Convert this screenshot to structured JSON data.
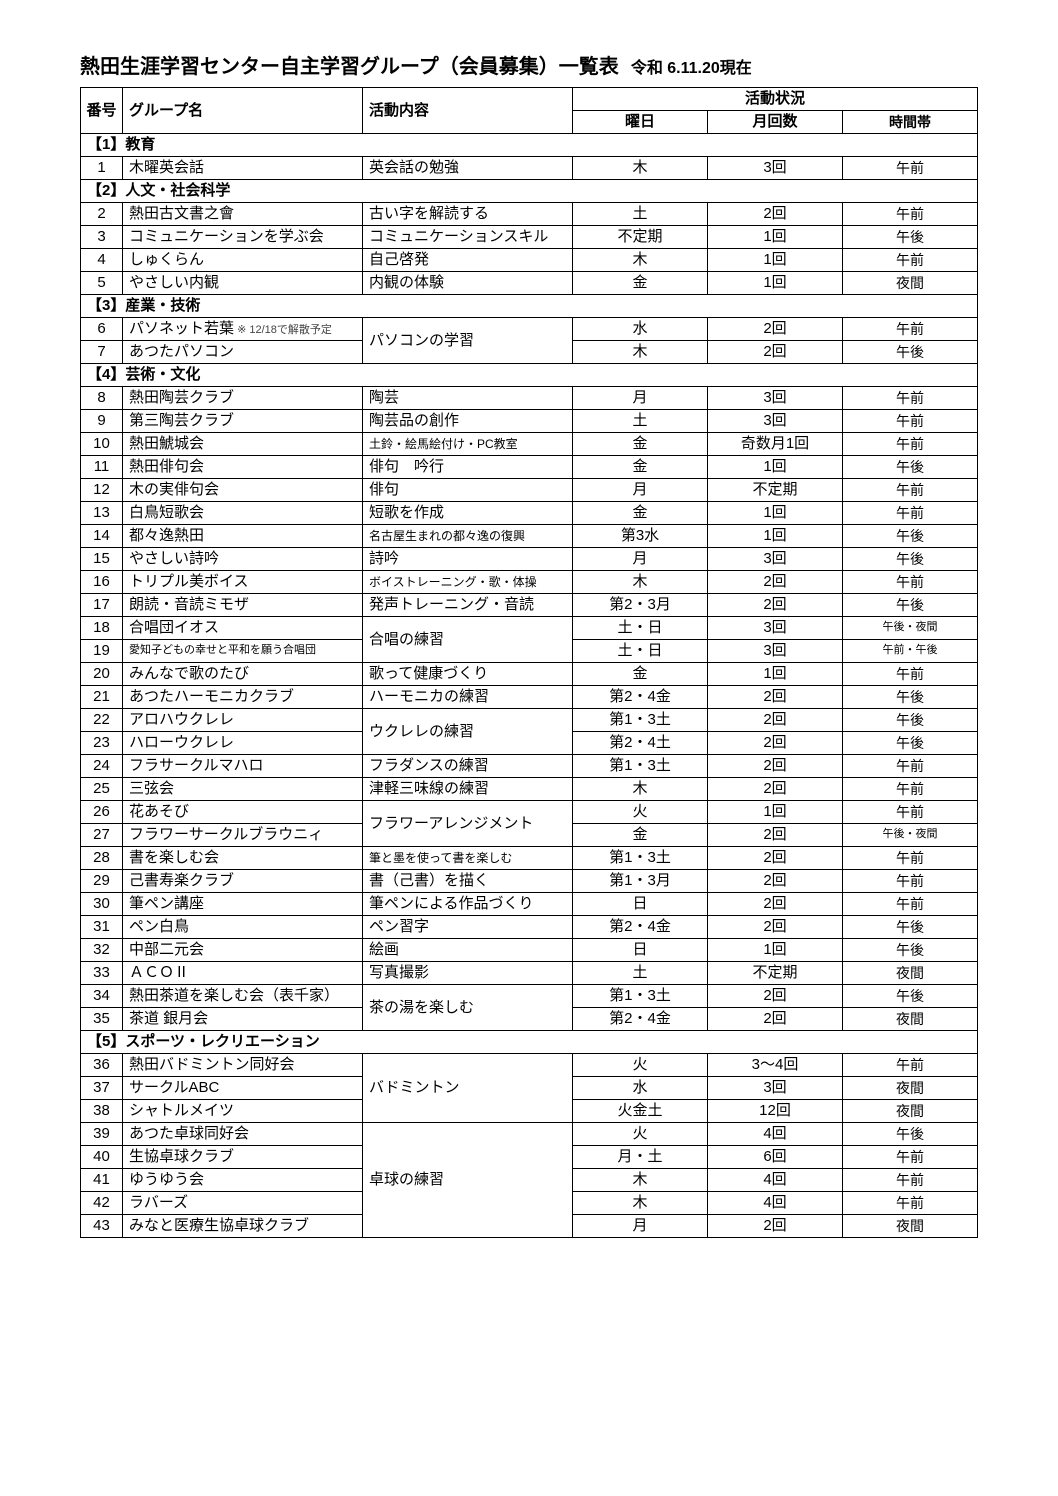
{
  "title": "熱田生涯学習センター自主学習グループ（会員募集）一覧表",
  "date": "令和 6.11.20現在",
  "headers": {
    "num": "番号",
    "name": "グループ名",
    "activity": "活動内容",
    "status": "活動状況",
    "day": "曜日",
    "count": "月回数",
    "time": "時間帯"
  },
  "sections": [
    {
      "label": "【1】教育",
      "rows": [
        {
          "num": "1",
          "name": "木曜英会話",
          "act": "英会話の勉強",
          "day": "木",
          "cnt": "3回",
          "time": "午前"
        }
      ]
    },
    {
      "label": "【2】人文・社会科学",
      "rows": [
        {
          "num": "2",
          "name": "熱田古文書之會",
          "act": "古い字を解読する",
          "day": "土",
          "cnt": "2回",
          "time": "午前"
        },
        {
          "num": "3",
          "name": "コミュニケーションを学ぶ会",
          "act": "コミュニケーションスキル",
          "day": "不定期",
          "cnt": "1回",
          "time": "午後"
        },
        {
          "num": "4",
          "name": "しゅくらん",
          "act": "自己啓発",
          "day": "木",
          "cnt": "1回",
          "time": "午前"
        },
        {
          "num": "5",
          "name": "やさしい内観",
          "act": "内観の体験",
          "day": "金",
          "cnt": "1回",
          "time": "夜間"
        }
      ]
    },
    {
      "label": "【3】産業・技術",
      "rows": [
        {
          "num": "6",
          "name": "パソネット若葉",
          "note": "※ 12/18で解散予定",
          "act": "パソコンの学習",
          "rowspan_act": 2,
          "day": "水",
          "cnt": "2回",
          "time": "午前"
        },
        {
          "num": "7",
          "name": "あつたパソコン",
          "day": "木",
          "cnt": "2回",
          "time": "午後"
        }
      ]
    },
    {
      "label": "【4】芸術・文化",
      "rows": [
        {
          "num": "8",
          "name": "熱田陶芸クラブ",
          "act": "陶芸",
          "day": "月",
          "cnt": "3回",
          "time": "午前"
        },
        {
          "num": "9",
          "name": "第三陶芸クラブ",
          "act": "陶芸品の創作",
          "day": "土",
          "cnt": "3回",
          "time": "午前"
        },
        {
          "num": "10",
          "name": "熱田鯱城会",
          "act": "土鈴・絵馬絵付け・PC教室",
          "act_small": true,
          "day": "金",
          "cnt": "奇数月1回",
          "time": "午前"
        },
        {
          "num": "11",
          "name": "熱田俳句会",
          "act": "俳句　吟行",
          "day": "金",
          "cnt": "1回",
          "time": "午後"
        },
        {
          "num": "12",
          "name": "木の実俳句会",
          "act": "俳句",
          "day": "月",
          "cnt": "不定期",
          "time": "午前"
        },
        {
          "num": "13",
          "name": "白鳥短歌会",
          "act": "短歌を作成",
          "day": "金",
          "cnt": "1回",
          "time": "午前"
        },
        {
          "num": "14",
          "name": "都々逸熱田",
          "act": "名古屋生まれの都々逸の復興",
          "act_small": true,
          "day": "第3水",
          "cnt": "1回",
          "time": "午後"
        },
        {
          "num": "15",
          "name": "やさしい詩吟",
          "act": "詩吟",
          "day": "月",
          "cnt": "3回",
          "time": "午後"
        },
        {
          "num": "16",
          "name": "トリプル美ボイス",
          "act": "ボイストレーニング・歌・体操",
          "act_small": true,
          "day": "木",
          "cnt": "2回",
          "time": "午前"
        },
        {
          "num": "17",
          "name": "朗読・音読ミモザ",
          "act": "発声トレーニング・音読",
          "day": "第2・3月",
          "cnt": "2回",
          "time": "午後"
        },
        {
          "num": "18",
          "name": "合唱団イオス",
          "act": "合唱の練習",
          "rowspan_act": 2,
          "day": "土・日",
          "cnt": "3回",
          "time": "午後・夜間",
          "time_small": true
        },
        {
          "num": "19",
          "name": "愛知子どもの幸せと平和を願う合唱団",
          "name_small": true,
          "day": "土・日",
          "cnt": "3回",
          "time": "午前・午後",
          "time_small": true
        },
        {
          "num": "20",
          "name": "みんなで歌のたび",
          "act": "歌って健康づくり",
          "day": "金",
          "cnt": "1回",
          "time": "午前"
        },
        {
          "num": "21",
          "name": "あつたハーモニカクラブ",
          "act": "ハーモニカの練習",
          "day": "第2・4金",
          "cnt": "2回",
          "time": "午後"
        },
        {
          "num": "22",
          "name": "アロハウクレレ",
          "act": "ウクレレの練習",
          "rowspan_act": 2,
          "day": "第1・3土",
          "cnt": "2回",
          "time": "午後"
        },
        {
          "num": "23",
          "name": "ハローウクレレ",
          "day": "第2・4土",
          "cnt": "2回",
          "time": "午後"
        },
        {
          "num": "24",
          "name": "フラサークルマハロ",
          "act": "フラダンスの練習",
          "day": "第1・3土",
          "cnt": "2回",
          "time": "午前"
        },
        {
          "num": "25",
          "name": "三弦会",
          "act": "津軽三味線の練習",
          "day": "木",
          "cnt": "2回",
          "time": "午前"
        },
        {
          "num": "26",
          "name": "花あそび",
          "act": "フラワーアレンジメント",
          "rowspan_act": 2,
          "day": "火",
          "cnt": "1回",
          "time": "午前"
        },
        {
          "num": "27",
          "name": "フラワーサークルブラウニィ",
          "day": "金",
          "cnt": "2回",
          "time": "午後・夜間",
          "time_small": true
        },
        {
          "num": "28",
          "name": "書を楽しむ会",
          "act": "筆と墨を使って書を楽しむ",
          "act_small": true,
          "day": "第1・3土",
          "cnt": "2回",
          "time": "午前"
        },
        {
          "num": "29",
          "name": "己書寿楽クラブ",
          "act": "書（己書）を描く",
          "day": "第1・3月",
          "cnt": "2回",
          "time": "午前"
        },
        {
          "num": "30",
          "name": "筆ペン講座",
          "act": "筆ペンによる作品づくり",
          "day": "日",
          "cnt": "2回",
          "time": "午前"
        },
        {
          "num": "31",
          "name": "ペン白鳥",
          "act": "ペン習字",
          "day": "第2・4金",
          "cnt": "2回",
          "time": "午後"
        },
        {
          "num": "32",
          "name": "中部二元会",
          "act": "絵画",
          "day": "日",
          "cnt": "1回",
          "time": "午後"
        },
        {
          "num": "33",
          "name": "ＡＣＯⅡ",
          "act": "写真撮影",
          "day": "土",
          "cnt": "不定期",
          "time": "夜間"
        },
        {
          "num": "34",
          "name": "熱田茶道を楽しむ会（表千家）",
          "act": "茶の湯を楽しむ",
          "rowspan_act": 2,
          "day": "第1・3土",
          "cnt": "2回",
          "time": "午後"
        },
        {
          "num": "35",
          "name": "茶道 銀月会",
          "day": "第2・4金",
          "cnt": "2回",
          "time": "夜間"
        }
      ]
    },
    {
      "label": "【5】スポーツ・レクリエーション",
      "rows": [
        {
          "num": "36",
          "name": "熱田バドミントン同好会",
          "act": "バドミントン",
          "rowspan_act": 3,
          "day": "火",
          "cnt": "3～4回",
          "time": "午前"
        },
        {
          "num": "37",
          "name": "サークルABC",
          "day": "水",
          "cnt": "3回",
          "time": "夜間"
        },
        {
          "num": "38",
          "name": "シャトルメイツ",
          "day": "火金土",
          "cnt": "12回",
          "time": "夜間"
        },
        {
          "num": "39",
          "name": "あつた卓球同好会",
          "act": "卓球の練習",
          "rowspan_act": 5,
          "day": "火",
          "cnt": "4回",
          "time": "午後"
        },
        {
          "num": "40",
          "name": "生協卓球クラブ",
          "day": "月・土",
          "cnt": "6回",
          "time": "午前"
        },
        {
          "num": "41",
          "name": "ゆうゆう会",
          "day": "木",
          "cnt": "4回",
          "time": "午前"
        },
        {
          "num": "42",
          "name": "ラバーズ",
          "day": "木",
          "cnt": "4回",
          "time": "午前"
        },
        {
          "num": "43",
          "name": "みなと医療生協卓球クラブ",
          "day": "月",
          "cnt": "2回",
          "time": "夜間"
        }
      ]
    }
  ]
}
